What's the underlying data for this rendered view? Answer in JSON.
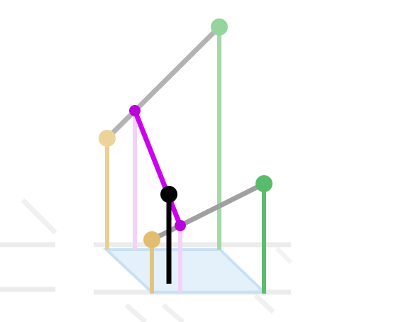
{
  "colors": {
    "background": "#ffffff",
    "floor_lines": "#e9e9e9",
    "floor_plane_fill": "#dcecf8",
    "floor_plane_edge": "#c6dff3",
    "yellow_pole": "#e8cf92",
    "yellow_node": "#e8c57f",
    "green_pole_light": "#9fd6a2",
    "green_node_light": "#91d39a",
    "green_pole_dark": "#5bbd6b",
    "green_node_dark": "#5bbd6b",
    "purple_link": "#cc00ee",
    "purple_node": "#bb00dd",
    "purple_shadow": "#f1c8f6",
    "gray_link": "#aaaaaa",
    "gray_link_dark": "#999999",
    "black_pole": "#000000",
    "black_node": "#000000"
  },
  "elements": {
    "floor": "floor-grid",
    "plane": "base-plane",
    "poles": [
      "yellow-pole-back",
      "yellow-pole-front",
      "green-pole-back",
      "green-pole-front",
      "purple-shadow-pole",
      "black-center-pole"
    ],
    "links": [
      "gray-link-upper",
      "gray-link-lower",
      "purple-link"
    ],
    "nodes": [
      "yellow-node-back",
      "yellow-node-front",
      "green-node-back",
      "green-node-front",
      "purple-node-upper",
      "purple-node-lower",
      "black-node-center"
    ]
  }
}
